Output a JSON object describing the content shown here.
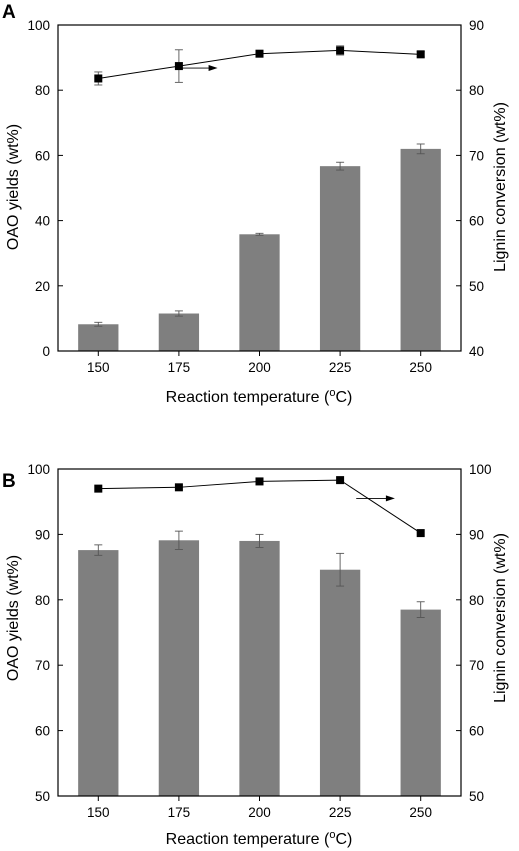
{
  "chart_data": [
    {
      "panel": "A",
      "type": "bar",
      "categories": [
        "150",
        "175",
        "200",
        "225",
        "250"
      ],
      "xlabel": "Reaction temperature (oC)",
      "ylabel": "OAO yields (wt%)",
      "y2label": "Lignin conversion (wt%)",
      "ylim": [
        0,
        100
      ],
      "y2lim": [
        40,
        90
      ],
      "yticks": [
        0,
        20,
        40,
        60,
        80,
        100
      ],
      "y2ticks": [
        40,
        50,
        60,
        70,
        80,
        90
      ],
      "bars": {
        "values": [
          8.2,
          11.5,
          35.8,
          56.7,
          62.0
        ],
        "errors": [
          0.6,
          0.8,
          0.3,
          1.2,
          1.5
        ],
        "color": "#7f7f7f"
      },
      "line": {
        "values": [
          81.8,
          83.7,
          85.6,
          86.1,
          85.5
        ],
        "errors": [
          1.0,
          2.5,
          0.3,
          0.7,
          0.4
        ],
        "axis": "right",
        "marker": "square",
        "color": "#000000"
      },
      "arrow": {
        "from_x": 175,
        "to_x": 187,
        "y": 83.4,
        "points_to": "right"
      }
    },
    {
      "panel": "B",
      "type": "bar",
      "categories": [
        "150",
        "175",
        "200",
        "225",
        "250"
      ],
      "xlabel": "Reaction temperature (oC)",
      "ylabel": "OAO yields (wt%)",
      "y2label": "Lignin conversion (wt%)",
      "ylim": [
        50,
        100
      ],
      "y2lim": [
        50,
        100
      ],
      "yticks": [
        50,
        60,
        70,
        80,
        90,
        100
      ],
      "y2ticks": [
        50,
        60,
        70,
        80,
        90,
        100
      ],
      "bars": {
        "values": [
          87.6,
          89.1,
          89.0,
          84.6,
          78.5
        ],
        "errors": [
          0.8,
          1.4,
          1.0,
          2.5,
          1.2
        ],
        "color": "#7f7f7f"
      },
      "line": {
        "values": [
          97.0,
          97.2,
          98.1,
          98.3,
          90.2
        ],
        "errors": [
          0,
          0,
          0,
          0,
          0
        ],
        "axis": "right",
        "marker": "square",
        "color": "#000000"
      },
      "arrow": {
        "from_x": 230,
        "to_x": 242,
        "y": 95.5,
        "points_to": "right"
      }
    }
  ]
}
